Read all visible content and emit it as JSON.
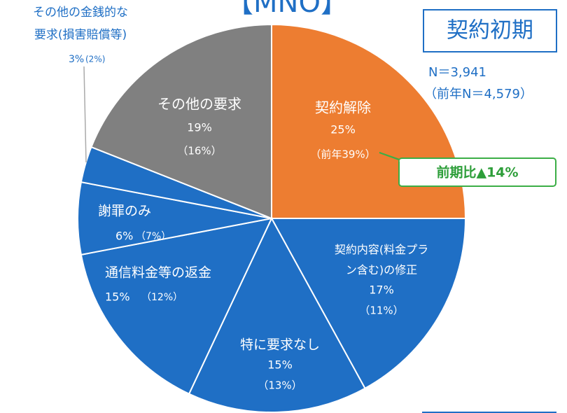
{
  "chart_data": {
    "type": "pie",
    "title": "【MNO】",
    "period": "契約初期",
    "n_label": "N＝3,941",
    "prev_n_label": "（前年N＝4,579）",
    "annotation": "前期比▲14%",
    "categories": [
      "契約解除",
      "契約内容(料金プラ\nン含む)の修正",
      "特に要求なし",
      "通信料金等の返金",
      "謝罪のみ",
      "その他の金銭的な\n要求(損害賠償等)",
      "その他の要求"
    ],
    "values": [
      25,
      17,
      15,
      15,
      6,
      3,
      19
    ],
    "value_labels": [
      "25%",
      "17%",
      "15%",
      "15%",
      "6%",
      "3%",
      "19%"
    ],
    "prev_labels": [
      "（前年39%）",
      "（11%）",
      "（13%）",
      "（12%）",
      "（7%）",
      "(2%)",
      "（16%）"
    ],
    "colors": [
      "#ED7D31",
      "#1F6FC5",
      "#1F6FC5",
      "#1F6FC5",
      "#1F6FC5",
      "#1F6FC5",
      "#808080"
    ]
  }
}
